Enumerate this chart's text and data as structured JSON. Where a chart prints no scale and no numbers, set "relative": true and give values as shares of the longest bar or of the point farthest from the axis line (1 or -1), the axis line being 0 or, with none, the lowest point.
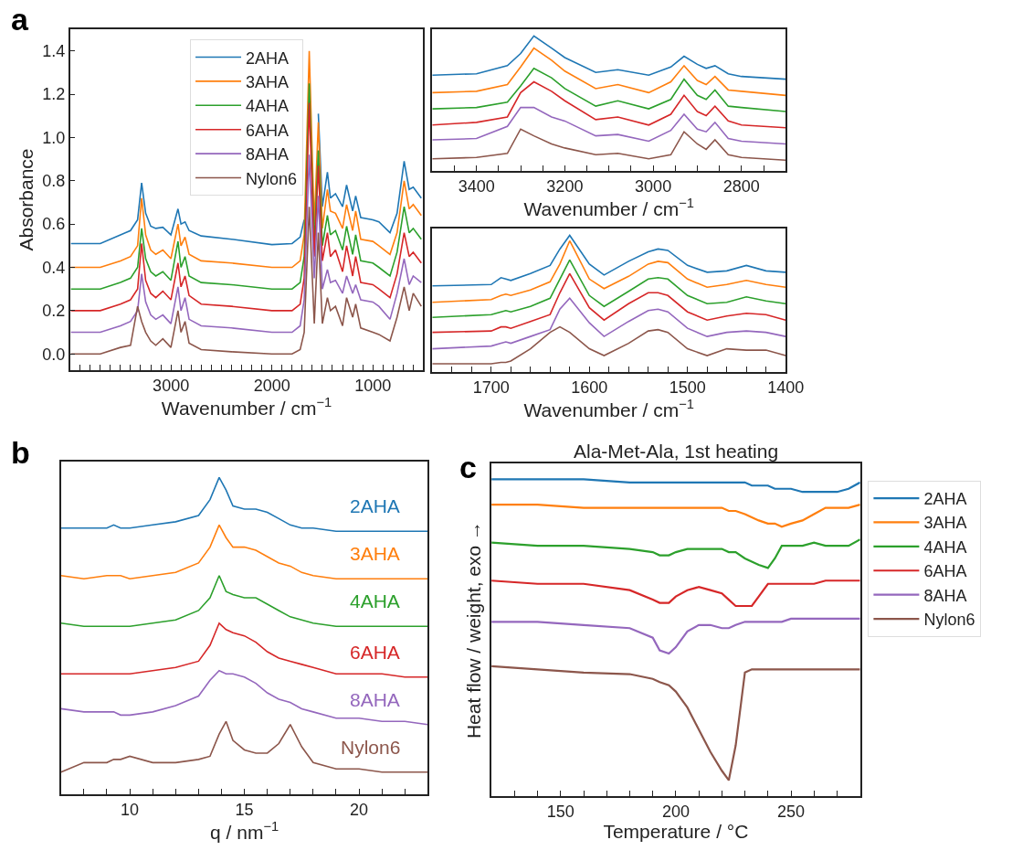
{
  "chart_data": [
    {
      "type": "line",
      "annotations": [
        "a"
      ],
      "xlabel": "Wavenumber / cm$^{−1}$",
      "ylabel": "Absorbance",
      "legend": "top",
      "x": [
        3990,
        3700,
        3500,
        3400,
        3330,
        3290,
        3250,
        3200,
        3150,
        3080,
        3000,
        2930,
        2900,
        2860,
        2820,
        2700,
        2400,
        2000,
        1800,
        1720,
        1680,
        1630,
        1580,
        1540,
        1500,
        1450,
        1420,
        1370,
        1300,
        1260,
        1200,
        1170,
        1120,
        1000,
        940,
        830,
        760,
        690,
        640,
        600,
        520
      ],
      "xlim": [
        4000,
        500
      ],
      "ylim": [
        -0.075,
        1.5
      ],
      "xticks": [
        {
          "value": 3900,
          "label": null
        },
        {
          "value": 3800,
          "label": null
        },
        {
          "value": 3700,
          "label": null
        },
        {
          "value": 3600,
          "label": null
        },
        {
          "value": 3500,
          "label": null
        },
        {
          "value": 3400,
          "label": null
        },
        {
          "value": 3300,
          "label": null
        },
        {
          "value": 3200,
          "label": null
        },
        {
          "value": 3100,
          "label": null
        },
        3000,
        {
          "value": 2900,
          "label": null
        },
        {
          "value": 2800,
          "label": null
        },
        {
          "value": 2700,
          "label": null
        },
        {
          "value": 2600,
          "label": null
        },
        {
          "value": 2500,
          "label": null
        },
        {
          "value": 2400,
          "label": null
        },
        {
          "value": 2300,
          "label": null
        },
        {
          "value": 2200,
          "label": null
        },
        {
          "value": 2100,
          "label": null
        },
        2000,
        {
          "value": 1900,
          "label": null
        },
        {
          "value": 1800,
          "label": null
        },
        {
          "value": 1700,
          "label": null
        },
        {
          "value": 1600,
          "label": null
        },
        {
          "value": 1500,
          "label": null
        },
        {
          "value": 1400,
          "label": null
        },
        {
          "value": 1300,
          "label": null
        },
        {
          "value": 1200,
          "label": null
        },
        {
          "value": 1100,
          "label": null
        },
        1000,
        {
          "value": 900,
          "label": null
        },
        {
          "value": 800,
          "label": null
        },
        {
          "value": 700,
          "label": null
        },
        {
          "value": 600,
          "label": null
        }
      ],
      "yticks": [
        {
          "value": 0,
          "label": "0.0"
        },
        0.2,
        0.4,
        0.6,
        0.8,
        {
          "value": 1,
          "label": "1.0"
        },
        1.2,
        1.4
      ],
      "series": [
        {
          "name": "2AHA",
          "color": "#1f77b4",
          "values": [
            0.51,
            0.51,
            0.55,
            0.57,
            0.62,
            0.79,
            0.65,
            0.59,
            0.58,
            0.585,
            0.55,
            0.67,
            0.6,
            0.61,
            0.57,
            0.545,
            0.53,
            0.505,
            0.51,
            0.54,
            0.62,
            null,
            null,
            1.11,
            0.68,
            0.84,
            0.72,
            0.74,
            0.68,
            0.78,
            0.66,
            0.73,
            0.63,
            0.62,
            0.61,
            0.56,
            0.65,
            0.89,
            0.76,
            0.77,
            0.72
          ]
        },
        {
          "name": "3AHA",
          "color": "#ff7f0e",
          "values": [
            0.4,
            0.4,
            0.43,
            0.45,
            0.5,
            0.72,
            0.55,
            0.48,
            0.46,
            0.48,
            0.44,
            0.6,
            0.5,
            0.54,
            0.46,
            0.43,
            0.42,
            0.4,
            0.4,
            0.43,
            0.55,
            1.4,
            0.6,
            1.07,
            0.58,
            0.76,
            0.66,
            0.65,
            0.58,
            0.69,
            0.57,
            0.66,
            0.53,
            0.52,
            0.5,
            0.46,
            0.56,
            0.8,
            0.67,
            0.69,
            0.64
          ]
        },
        {
          "name": "4AHA",
          "color": "#2ca02c",
          "values": [
            0.3,
            0.3,
            0.33,
            0.35,
            0.4,
            0.58,
            0.44,
            0.38,
            0.36,
            0.38,
            0.34,
            0.52,
            0.4,
            0.45,
            0.36,
            0.33,
            0.32,
            0.3,
            0.3,
            0.33,
            0.45,
            1.25,
            0.5,
            0.94,
            0.5,
            0.64,
            0.55,
            0.57,
            0.48,
            0.59,
            0.46,
            0.55,
            0.43,
            0.42,
            0.4,
            0.36,
            0.47,
            0.68,
            0.56,
            0.58,
            0.53
          ]
        },
        {
          "name": "6AHA",
          "color": "#d62728",
          "values": [
            0.2,
            0.2,
            0.23,
            0.25,
            0.3,
            0.51,
            0.34,
            0.28,
            0.26,
            0.29,
            0.25,
            0.42,
            0.31,
            0.36,
            0.27,
            0.23,
            0.22,
            0.2,
            0.2,
            0.23,
            0.35,
            1.16,
            0.45,
            0.87,
            0.43,
            0.56,
            0.45,
            0.48,
            0.38,
            0.5,
            0.36,
            0.45,
            0.33,
            0.32,
            0.3,
            0.26,
            0.37,
            0.56,
            0.45,
            0.47,
            0.42
          ]
        },
        {
          "name": "8AHA",
          "color": "#9467bd",
          "values": [
            0.1,
            0.1,
            0.13,
            0.15,
            0.2,
            0.37,
            0.24,
            0.18,
            0.16,
            0.18,
            0.14,
            0.31,
            0.2,
            0.26,
            0.16,
            0.13,
            0.12,
            0.1,
            0.1,
            0.13,
            0.25,
            0.92,
            0.35,
            0.73,
            0.3,
            0.39,
            0.33,
            0.34,
            0.28,
            0.36,
            0.28,
            0.32,
            0.25,
            0.24,
            0.22,
            0.16,
            0.28,
            0.44,
            0.32,
            0.36,
            0.33
          ]
        },
        {
          "name": "Nylon6",
          "color": "#8c564b",
          "values": [
            0.0,
            0.0,
            0.03,
            0.04,
            0.22,
            0.15,
            0.1,
            0.06,
            0.04,
            0.07,
            0.03,
            0.2,
            0.1,
            0.15,
            0.05,
            0.02,
            0.01,
            0.0,
            0.0,
            0.02,
            0.1,
            0.68,
            0.14,
            0.56,
            0.14,
            0.26,
            0.2,
            0.22,
            0.13,
            0.26,
            0.17,
            0.23,
            0.12,
            0.1,
            0.09,
            0.06,
            0.17,
            0.31,
            0.2,
            0.28,
            0.22
          ]
        }
      ]
    },
    {
      "type": "line",
      "relative": true,
      "tick_labels": "x",
      "xlabel": "Wavenumber / cm$^{−1}$",
      "legend": false,
      "x": [
        3500,
        3400,
        3330,
        3300,
        3270,
        3230,
        3200,
        3130,
        3080,
        3010,
        2960,
        2930,
        2900,
        2880,
        2860,
        2830,
        2800,
        2700
      ],
      "xlim": [
        3500,
        2700
      ],
      "xticks": [
        {
          "value": 3450,
          "label": null
        },
        3400,
        {
          "value": 3350,
          "label": null
        },
        {
          "value": 3300,
          "label": null
        },
        {
          "value": 3250,
          "label": null
        },
        3200,
        {
          "value": 3150,
          "label": null
        },
        {
          "value": 3100,
          "label": null
        },
        {
          "value": 3050,
          "label": null
        },
        3000,
        {
          "value": 2950,
          "label": null
        },
        {
          "value": 2900,
          "label": null
        },
        {
          "value": 2850,
          "label": null
        },
        2800,
        {
          "value": 2750,
          "label": null
        }
      ],
      "series": [
        {
          "color": "#1f77b4",
          "values": [
            0.71,
            0.72,
            0.78,
            0.87,
            1.0,
            0.91,
            0.84,
            0.73,
            0.75,
            0.71,
            0.77,
            0.85,
            0.79,
            0.76,
            0.78,
            0.72,
            0.7,
            0.68
          ]
        },
        {
          "color": "#ff7f0e",
          "values": [
            0.58,
            0.59,
            0.64,
            0.77,
            0.91,
            0.82,
            0.74,
            0.61,
            0.64,
            0.58,
            0.66,
            0.78,
            0.67,
            0.64,
            0.7,
            0.6,
            0.59,
            0.56
          ]
        },
        {
          "color": "#2ca02c",
          "values": [
            0.46,
            0.47,
            0.51,
            0.63,
            0.76,
            0.69,
            0.61,
            0.48,
            0.52,
            0.46,
            0.53,
            0.68,
            0.56,
            0.53,
            0.6,
            0.48,
            0.47,
            0.44
          ]
        },
        {
          "color": "#d62728",
          "values": [
            0.34,
            0.36,
            0.4,
            0.58,
            0.66,
            0.59,
            0.52,
            0.38,
            0.4,
            0.34,
            0.42,
            0.56,
            0.44,
            0.41,
            0.48,
            0.37,
            0.34,
            0.32
          ]
        },
        {
          "color": "#9467bd",
          "values": [
            0.23,
            0.24,
            0.33,
            0.47,
            0.47,
            0.4,
            0.37,
            0.26,
            0.27,
            0.22,
            0.3,
            0.42,
            0.31,
            0.29,
            0.36,
            0.24,
            0.22,
            0.2
          ]
        },
        {
          "color": "#8c564b",
          "values": [
            0.09,
            0.1,
            0.13,
            0.31,
            0.26,
            0.2,
            0.17,
            0.12,
            0.13,
            0.09,
            0.12,
            0.29,
            0.2,
            0.16,
            0.23,
            0.12,
            0.1,
            0.08
          ]
        }
      ]
    },
    {
      "type": "line",
      "relative": true,
      "tick_labels": "x",
      "xlabel": "Wavenumber / cm$^{−1}$",
      "legend": false,
      "x": [
        1760,
        1700,
        1690,
        1685,
        1680,
        1660,
        1640,
        1630,
        1620,
        1600,
        1585,
        1560,
        1540,
        1530,
        1520,
        1500,
        1480,
        1460,
        1440,
        1420,
        1400
      ],
      "xlim": [
        1760,
        1400
      ],
      "xticks": [
        {
          "value": 1740,
          "label": null
        },
        {
          "value": 1720,
          "label": null
        },
        1700,
        {
          "value": 1680,
          "label": null
        },
        {
          "value": 1660,
          "label": null
        },
        {
          "value": 1640,
          "label": null
        },
        {
          "value": 1620,
          "label": null
        },
        1600,
        {
          "value": 1580,
          "label": null
        },
        {
          "value": 1560,
          "label": null
        },
        {
          "value": 1540,
          "label": null
        },
        {
          "value": 1520,
          "label": null
        },
        1500,
        {
          "value": 1480,
          "label": null
        },
        {
          "value": 1460,
          "label": null
        },
        {
          "value": 1440,
          "label": null
        },
        {
          "value": 1420,
          "label": null
        },
        1400
      ],
      "series": [
        {
          "color": "#1f77b4",
          "values": [
            0.63,
            0.64,
            0.69,
            0.68,
            0.67,
            0.72,
            0.78,
            0.9,
            1.0,
            0.79,
            0.71,
            0.81,
            0.88,
            0.9,
            0.89,
            0.78,
            0.73,
            0.74,
            0.78,
            0.74,
            0.73
          ]
        },
        {
          "color": "#ff7f0e",
          "values": [
            0.51,
            0.53,
            0.56,
            0.57,
            0.56,
            0.6,
            0.66,
            0.79,
            0.96,
            0.68,
            0.61,
            0.7,
            0.79,
            0.81,
            0.8,
            0.68,
            0.62,
            0.64,
            0.67,
            0.64,
            0.62
          ]
        },
        {
          "color": "#2ca02c",
          "values": [
            0.4,
            0.42,
            0.44,
            0.45,
            0.44,
            0.48,
            0.54,
            0.68,
            0.82,
            0.56,
            0.48,
            0.59,
            0.68,
            0.69,
            0.68,
            0.56,
            0.5,
            0.51,
            0.55,
            0.52,
            0.5
          ]
        },
        {
          "color": "#d62728",
          "values": [
            0.29,
            0.3,
            0.33,
            0.33,
            0.32,
            0.37,
            0.42,
            0.58,
            0.72,
            0.47,
            0.38,
            0.5,
            0.58,
            0.58,
            0.56,
            0.44,
            0.38,
            0.41,
            0.43,
            0.42,
            0.38
          ]
        },
        {
          "color": "#9467bd",
          "values": [
            0.17,
            0.19,
            0.21,
            0.22,
            0.21,
            0.26,
            0.31,
            0.46,
            0.54,
            0.36,
            0.26,
            0.37,
            0.45,
            0.46,
            0.44,
            0.32,
            0.26,
            0.29,
            0.3,
            0.29,
            0.26
          ]
        },
        {
          "color": "#8c564b",
          "values": [
            0.06,
            0.06,
            0.07,
            0.07,
            0.08,
            0.17,
            0.29,
            0.33,
            0.29,
            0.17,
            0.12,
            0.21,
            0.3,
            0.31,
            0.29,
            0.17,
            0.12,
            0.17,
            0.16,
            0.16,
            0.12
          ]
        }
      ]
    },
    {
      "type": "line",
      "relative": true,
      "tick_labels": "x",
      "annotations": [
        "b"
      ],
      "xlabel": "q / nm$^{−1}$",
      "legend": false,
      "x": [
        7,
        8,
        9,
        9.3,
        9.6,
        10,
        11,
        12,
        13,
        13.5,
        13.9,
        14.2,
        14.5,
        15,
        15.5,
        16,
        16.5,
        17,
        17.5,
        18,
        19,
        20,
        21,
        22,
        23
      ],
      "xlim": [
        7,
        23
      ],
      "xticks": [
        {
          "value": 8,
          "label": null
        },
        {
          "value": 9,
          "label": null
        },
        10,
        {
          "value": 11,
          "label": null
        },
        {
          "value": 12,
          "label": null
        },
        {
          "value": 13,
          "label": null
        },
        {
          "value": 14,
          "label": null
        },
        15,
        {
          "value": 16,
          "label": null
        },
        {
          "value": 17,
          "label": null
        },
        {
          "value": 18,
          "label": null
        },
        {
          "value": 19,
          "label": null
        },
        20,
        {
          "value": 21,
          "label": null
        },
        {
          "value": 22,
          "label": null
        }
      ],
      "series": [
        {
          "name": "2AHA",
          "color": "#1f77b4",
          "values": [
            0.84,
            0.84,
            0.84,
            0.85,
            0.84,
            0.84,
            0.85,
            0.86,
            0.88,
            0.93,
            1.0,
            0.96,
            0.91,
            0.9,
            0.9,
            0.89,
            0.87,
            0.85,
            0.84,
            0.84,
            0.83,
            0.83,
            0.83,
            0.83,
            0.83
          ]
        },
        {
          "name": "3AHA",
          "color": "#ff7f0e",
          "values": [
            0.69,
            0.68,
            0.69,
            0.69,
            0.69,
            0.68,
            0.69,
            0.7,
            0.73,
            0.78,
            0.85,
            0.81,
            0.78,
            0.78,
            0.77,
            0.75,
            0.73,
            0.72,
            0.7,
            0.69,
            0.68,
            0.68,
            0.68,
            0.68,
            0.68
          ]
        },
        {
          "name": "4AHA",
          "color": "#2ca02c",
          "values": [
            0.54,
            0.53,
            0.53,
            0.53,
            0.53,
            0.53,
            0.54,
            0.55,
            0.58,
            0.62,
            0.69,
            0.64,
            0.63,
            0.62,
            0.62,
            0.6,
            0.58,
            0.56,
            0.55,
            0.54,
            0.53,
            0.53,
            0.53,
            0.53,
            0.53
          ]
        },
        {
          "name": "6AHA",
          "color": "#d62728",
          "values": [
            0.38,
            0.38,
            0.38,
            0.38,
            0.38,
            0.38,
            0.39,
            0.4,
            0.42,
            0.47,
            0.54,
            0.52,
            0.51,
            0.5,
            0.48,
            0.45,
            0.43,
            0.42,
            0.41,
            0.4,
            0.38,
            0.38,
            0.38,
            0.37,
            0.37
          ]
        },
        {
          "name": "8AHA",
          "color": "#9467bd",
          "values": [
            0.27,
            0.26,
            0.26,
            0.26,
            0.25,
            0.25,
            0.26,
            0.28,
            0.31,
            0.36,
            0.39,
            0.38,
            0.38,
            0.37,
            0.35,
            0.32,
            0.3,
            0.29,
            0.27,
            0.26,
            0.24,
            0.24,
            0.23,
            0.23,
            0.22
          ]
        },
        {
          "name": "Nylon6",
          "color": "#8c564b",
          "values": [
            0.07,
            0.1,
            0.1,
            0.11,
            0.11,
            0.12,
            0.1,
            0.1,
            0.11,
            0.12,
            0.19,
            0.23,
            0.17,
            0.14,
            0.13,
            0.13,
            0.16,
            0.22,
            0.15,
            0.1,
            0.08,
            0.08,
            0.07,
            0.07,
            0.07
          ]
        }
      ]
    },
    {
      "type": "line",
      "relative": true,
      "tick_labels": "x",
      "annotations": [
        "c"
      ],
      "title": "Ala-Met-Ala, 1st heating",
      "xlabel": "Temperature / °C",
      "ylabel": "Heat flow / weight, exo →",
      "legend": "right",
      "x": [
        120,
        140,
        160,
        180,
        190,
        193,
        197,
        200,
        205,
        210,
        215,
        220,
        223,
        226,
        230,
        233,
        236,
        240,
        243,
        246,
        250,
        255,
        260,
        265,
        270,
        275,
        280
      ],
      "xlim": [
        120,
        280
      ],
      "xticks": [
        {
          "value": 130,
          "label": null
        },
        {
          "value": 140,
          "label": null
        },
        150,
        {
          "value": 160,
          "label": null
        },
        {
          "value": 170,
          "label": null
        },
        {
          "value": 180,
          "label": null
        },
        {
          "value": 190,
          "label": null
        },
        200,
        {
          "value": 210,
          "label": null
        },
        {
          "value": 220,
          "label": null
        },
        {
          "value": 230,
          "label": null
        },
        {
          "value": 240,
          "label": null
        },
        250,
        {
          "value": 260,
          "label": null
        },
        {
          "value": 270,
          "label": null
        }
      ],
      "series": [
        {
          "name": "2AHA",
          "color": "#1f77b4",
          "values": [
            1.0,
            1.0,
            1.0,
            0.99,
            0.99,
            0.99,
            0.99,
            0.99,
            0.99,
            0.99,
            0.99,
            0.99,
            0.99,
            0.99,
            0.99,
            0.98,
            0.98,
            0.98,
            0.97,
            0.97,
            0.97,
            0.96,
            0.96,
            0.96,
            0.96,
            0.97,
            0.99
          ]
        },
        {
          "name": "3AHA",
          "color": "#ff7f0e",
          "values": [
            0.92,
            0.92,
            0.91,
            0.91,
            0.91,
            0.91,
            0.91,
            0.91,
            0.91,
            0.91,
            0.91,
            0.91,
            0.9,
            0.9,
            0.89,
            0.88,
            0.87,
            0.86,
            0.86,
            0.85,
            0.86,
            0.87,
            0.89,
            0.91,
            0.91,
            0.91,
            0.92
          ]
        },
        {
          "name": "4AHA",
          "color": "#2ca02c",
          "values": [
            0.8,
            0.79,
            0.79,
            0.78,
            0.77,
            0.76,
            0.76,
            0.77,
            0.78,
            0.78,
            0.78,
            0.78,
            0.77,
            0.77,
            0.75,
            0.74,
            0.73,
            0.72,
            0.75,
            0.79,
            0.79,
            0.79,
            0.8,
            0.79,
            0.79,
            0.79,
            0.81
          ]
        },
        {
          "name": "6AHA",
          "color": "#d62728",
          "values": [
            0.68,
            0.67,
            0.67,
            0.65,
            0.62,
            0.61,
            0.61,
            0.63,
            0.65,
            0.66,
            0.65,
            0.64,
            0.62,
            0.6,
            0.6,
            0.6,
            0.63,
            0.67,
            0.67,
            0.67,
            0.67,
            0.67,
            0.67,
            0.68,
            0.68,
            0.68,
            0.68
          ]
        },
        {
          "name": "8AHA",
          "color": "#9467bd",
          "values": [
            0.55,
            0.55,
            0.54,
            0.53,
            0.5,
            0.46,
            0.45,
            0.47,
            0.52,
            0.54,
            0.54,
            0.53,
            0.53,
            0.54,
            0.55,
            0.55,
            0.55,
            0.55,
            0.55,
            0.55,
            0.56,
            0.56,
            0.56,
            0.56,
            0.56,
            0.56,
            0.56
          ]
        },
        {
          "name": "Nylon6",
          "color": "#8c564b",
          "values": [
            0.41,
            0.4,
            0.39,
            0.385,
            0.37,
            0.36,
            0.35,
            0.33,
            0.28,
            0.21,
            0.14,
            0.08,
            0.05,
            0.16,
            0.39,
            0.4,
            0.4,
            0.4,
            0.4,
            0.4,
            0.4,
            0.4,
            0.4,
            0.4,
            0.4,
            0.4,
            0.4
          ]
        }
      ]
    }
  ]
}
